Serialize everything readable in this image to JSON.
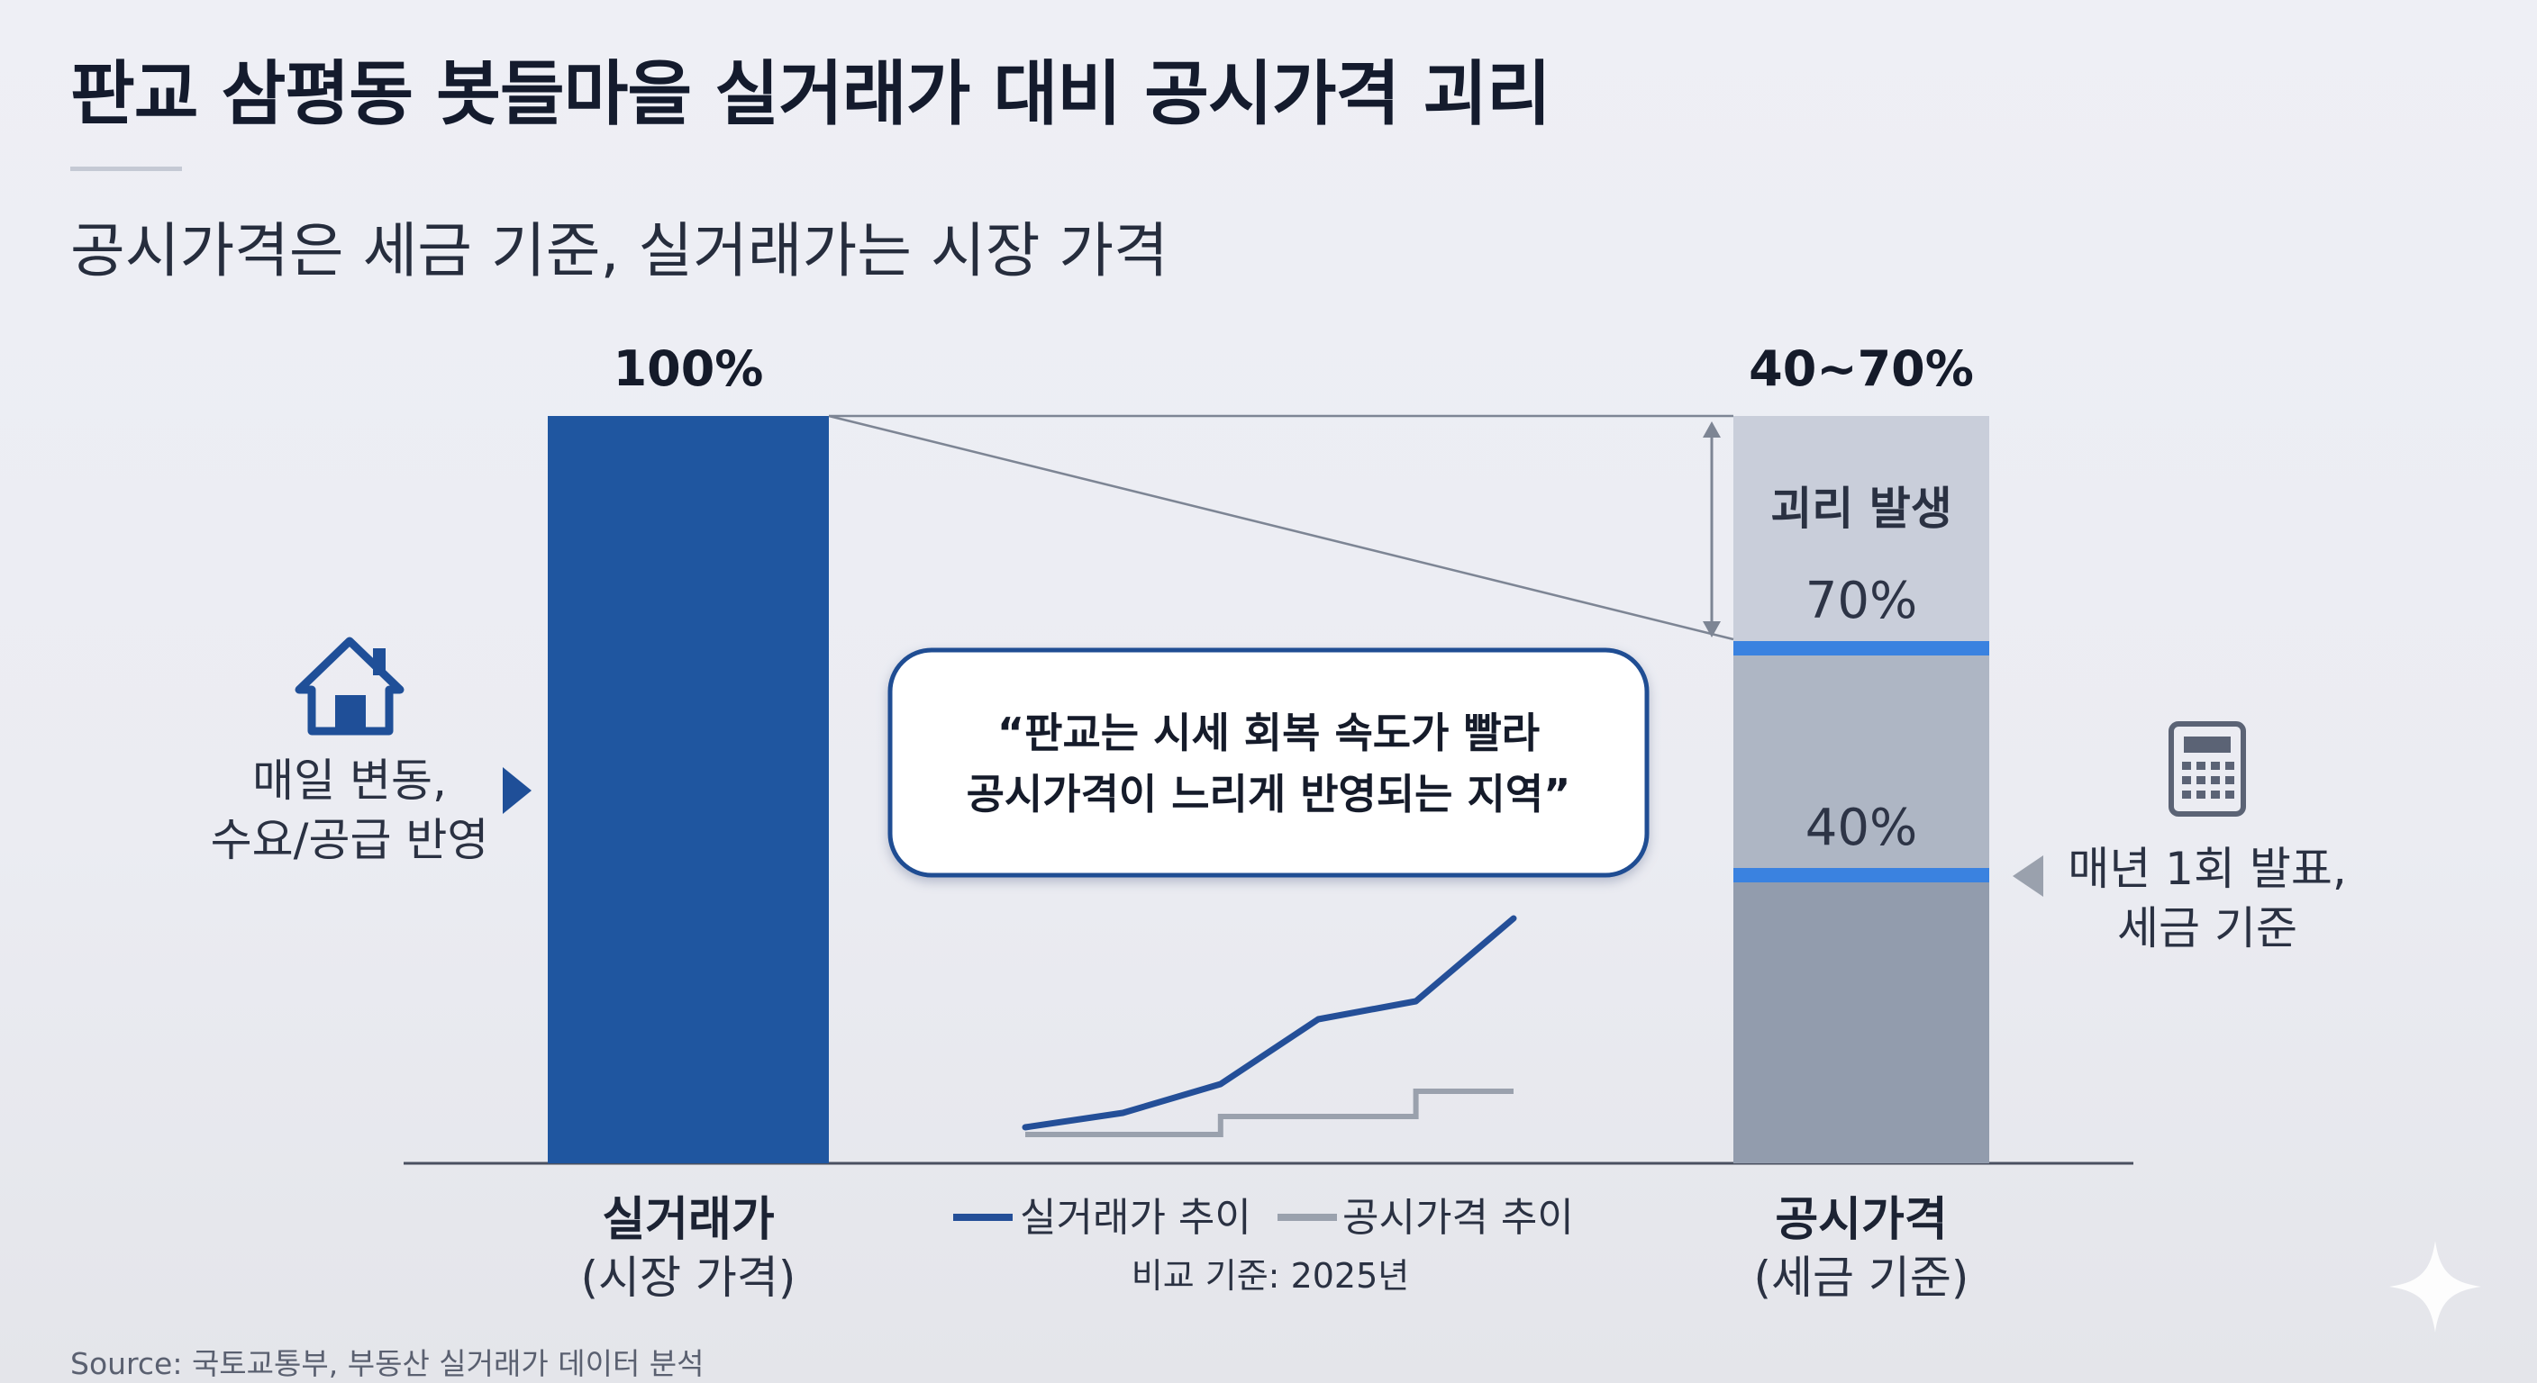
{
  "title": "판교 삼평동 봇들마을 실거래가 대비 공시가격 괴리",
  "subtitle": "공시가격은 세금 기준, 실거래가는 시장 가격",
  "source": "Source: 국토교통부, 부동산 실거래가 데이터 분석",
  "left_note": {
    "line1": "매일 변동,",
    "line2": "수요/공급 반영",
    "icon": "house-icon"
  },
  "right_note": {
    "line1": "매년 1회 발표,",
    "line2": "세금 기준",
    "icon": "calculator-icon"
  },
  "callout": {
    "line1": "“판교는 시세 회복 속도가 빨라",
    "line2": "공시가격이 느리게 반영되는 지역”"
  },
  "colors": {
    "actual_bar": "#1f56a0",
    "official_light": "#c9ceda",
    "official_mid": "#aeb6c4",
    "official_dark": "#929cad",
    "marker": "#3a82e0",
    "actual_line": "#244f98",
    "official_line": "#9aa1ad"
  },
  "chart_data": {
    "type": "bar",
    "categories": [
      "실거래가",
      "공시가격"
    ],
    "category_sublabels": [
      "(시장 가격)",
      "(세금 기준)"
    ],
    "top_labels": [
      "100%",
      "40~70%"
    ],
    "values": [
      100,
      70
    ],
    "official_range": [
      40,
      70
    ],
    "markers": [
      {
        "label": "70%",
        "value": 70
      },
      {
        "label": "40%",
        "value": 40
      }
    ],
    "gap_label": "괴리 발생",
    "ylim": [
      0,
      100
    ],
    "inset_chart": {
      "type": "line",
      "series": [
        {
          "name": "실거래가 추이",
          "values": [
            2,
            6,
            14,
            32,
            37,
            60
          ]
        },
        {
          "name": "공시가격 추이",
          "values": [
            0,
            0,
            5,
            5,
            12,
            12
          ]
        }
      ],
      "note": "비교 기준: 2025년"
    }
  }
}
